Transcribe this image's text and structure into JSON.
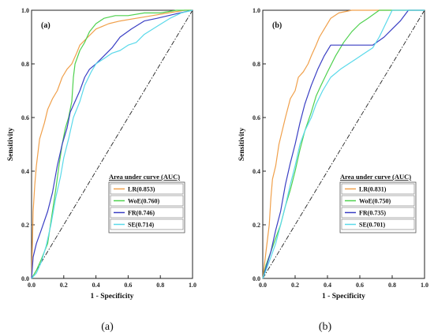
{
  "chart_data": [
    {
      "type": "line",
      "panel_label": "(a)",
      "caption": "(a)",
      "xlabel": "1 - Specificity",
      "ylabel": "Sensitivity",
      "xlim": [
        0,
        1
      ],
      "ylim": [
        0,
        1
      ],
      "xticks": [
        "0.0",
        "0.2",
        "0.4",
        "0.6",
        "0.8",
        "1.0"
      ],
      "yticks": [
        "0.0",
        "0.2",
        "0.4",
        "0.6",
        "0.8",
        "1.0"
      ],
      "grid": false,
      "legend_title": "Area under curve (AUC)",
      "legend_position": "bottom-right",
      "diagonal": true,
      "series": [
        {
          "name": "LR(0.853)",
          "color": "#f0a04b",
          "points": [
            [
              0,
              0
            ],
            [
              0.005,
              0.12
            ],
            [
              0.01,
              0.25
            ],
            [
              0.02,
              0.35
            ],
            [
              0.03,
              0.42
            ],
            [
              0.05,
              0.52
            ],
            [
              0.08,
              0.58
            ],
            [
              0.1,
              0.63
            ],
            [
              0.13,
              0.67
            ],
            [
              0.16,
              0.7
            ],
            [
              0.19,
              0.75
            ],
            [
              0.22,
              0.78
            ],
            [
              0.25,
              0.8
            ],
            [
              0.28,
              0.84
            ],
            [
              0.3,
              0.87
            ],
            [
              0.35,
              0.9
            ],
            [
              0.4,
              0.93
            ],
            [
              0.48,
              0.95
            ],
            [
              0.55,
              0.96
            ],
            [
              0.65,
              0.97
            ],
            [
              0.75,
              0.98
            ],
            [
              0.85,
              0.99
            ],
            [
              0.95,
              1.0
            ],
            [
              1,
              1
            ]
          ]
        },
        {
          "name": "WoE(0.760)",
          "color": "#4fd14f",
          "points": [
            [
              0,
              0
            ],
            [
              0.03,
              0.03
            ],
            [
              0.06,
              0.07
            ],
            [
              0.1,
              0.13
            ],
            [
              0.13,
              0.25
            ],
            [
              0.15,
              0.33
            ],
            [
              0.17,
              0.42
            ],
            [
              0.19,
              0.5
            ],
            [
              0.21,
              0.56
            ],
            [
              0.23,
              0.6
            ],
            [
              0.25,
              0.66
            ],
            [
              0.26,
              0.75
            ],
            [
              0.27,
              0.8
            ],
            [
              0.3,
              0.85
            ],
            [
              0.33,
              0.88
            ],
            [
              0.36,
              0.92
            ],
            [
              0.4,
              0.95
            ],
            [
              0.45,
              0.97
            ],
            [
              0.52,
              0.98
            ],
            [
              0.6,
              0.98
            ],
            [
              0.7,
              0.99
            ],
            [
              0.8,
              0.99
            ],
            [
              0.9,
              1.0
            ],
            [
              1,
              1
            ]
          ]
        },
        {
          "name": "FR(0.746)",
          "color": "#3a3fc4",
          "points": [
            [
              0,
              0
            ],
            [
              0.01,
              0.08
            ],
            [
              0.03,
              0.13
            ],
            [
              0.06,
              0.18
            ],
            [
              0.1,
              0.25
            ],
            [
              0.13,
              0.32
            ],
            [
              0.16,
              0.42
            ],
            [
              0.19,
              0.5
            ],
            [
              0.22,
              0.56
            ],
            [
              0.24,
              0.62
            ],
            [
              0.27,
              0.66
            ],
            [
              0.3,
              0.7
            ],
            [
              0.33,
              0.75
            ],
            [
              0.36,
              0.78
            ],
            [
              0.4,
              0.8
            ],
            [
              0.45,
              0.83
            ],
            [
              0.5,
              0.86
            ],
            [
              0.55,
              0.9
            ],
            [
              0.62,
              0.93
            ],
            [
              0.7,
              0.96
            ],
            [
              0.78,
              0.97
            ],
            [
              0.85,
              0.98
            ],
            [
              0.92,
              0.99
            ],
            [
              1,
              1
            ]
          ]
        },
        {
          "name": "SE(0.714)",
          "color": "#5ad9ea",
          "points": [
            [
              0,
              0
            ],
            [
              0.03,
              0.02
            ],
            [
              0.06,
              0.06
            ],
            [
              0.09,
              0.12
            ],
            [
              0.12,
              0.2
            ],
            [
              0.15,
              0.3
            ],
            [
              0.18,
              0.38
            ],
            [
              0.2,
              0.45
            ],
            [
              0.23,
              0.52
            ],
            [
              0.26,
              0.6
            ],
            [
              0.3,
              0.66
            ],
            [
              0.33,
              0.72
            ],
            [
              0.37,
              0.77
            ],
            [
              0.4,
              0.8
            ],
            [
              0.45,
              0.82
            ],
            [
              0.5,
              0.84
            ],
            [
              0.55,
              0.85
            ],
            [
              0.6,
              0.87
            ],
            [
              0.65,
              0.88
            ],
            [
              0.7,
              0.91
            ],
            [
              0.78,
              0.94
            ],
            [
              0.86,
              0.97
            ],
            [
              0.93,
              0.99
            ],
            [
              1,
              1
            ]
          ]
        }
      ]
    },
    {
      "type": "line",
      "panel_label": "(b)",
      "caption": "(b)",
      "xlabel": "1 - Specificity",
      "ylabel": "Sensitivity",
      "xlim": [
        0,
        1
      ],
      "ylim": [
        0,
        1
      ],
      "xticks": [
        "0.0",
        "0.2",
        "0.4",
        "0.6",
        "0.8",
        "1.0"
      ],
      "yticks": [
        "0.0",
        "0.2",
        "0.4",
        "0.6",
        "0.8",
        "1.0"
      ],
      "grid": false,
      "legend_title": "Area under curve (AUC)",
      "legend_position": "bottom-right",
      "diagonal": true,
      "series": [
        {
          "name": "LR(0.831)",
          "color": "#f0a04b",
          "points": [
            [
              0,
              0
            ],
            [
              0.02,
              0.1
            ],
            [
              0.04,
              0.2
            ],
            [
              0.05,
              0.3
            ],
            [
              0.06,
              0.37
            ],
            [
              0.08,
              0.42
            ],
            [
              0.1,
              0.5
            ],
            [
              0.12,
              0.55
            ],
            [
              0.14,
              0.6
            ],
            [
              0.17,
              0.67
            ],
            [
              0.2,
              0.7
            ],
            [
              0.22,
              0.75
            ],
            [
              0.25,
              0.77
            ],
            [
              0.28,
              0.8
            ],
            [
              0.3,
              0.83
            ],
            [
              0.33,
              0.87
            ],
            [
              0.35,
              0.9
            ],
            [
              0.38,
              0.93
            ],
            [
              0.42,
              0.97
            ],
            [
              0.47,
              0.99
            ],
            [
              0.55,
              1.0
            ],
            [
              1,
              1
            ]
          ]
        },
        {
          "name": "WoE(0.750)",
          "color": "#4fd14f",
          "points": [
            [
              0,
              0
            ],
            [
              0.02,
              0.05
            ],
            [
              0.05,
              0.1
            ],
            [
              0.08,
              0.15
            ],
            [
              0.11,
              0.2
            ],
            [
              0.14,
              0.27
            ],
            [
              0.17,
              0.33
            ],
            [
              0.2,
              0.4
            ],
            [
              0.23,
              0.48
            ],
            [
              0.26,
              0.55
            ],
            [
              0.3,
              0.62
            ],
            [
              0.33,
              0.68
            ],
            [
              0.36,
              0.72
            ],
            [
              0.4,
              0.77
            ],
            [
              0.45,
              0.83
            ],
            [
              0.5,
              0.88
            ],
            [
              0.55,
              0.92
            ],
            [
              0.6,
              0.95
            ],
            [
              0.65,
              0.97
            ],
            [
              0.72,
              1.0
            ],
            [
              1,
              1
            ]
          ]
        },
        {
          "name": "FR(0.735)",
          "color": "#3a3fc4",
          "points": [
            [
              0,
              0
            ],
            [
              0.02,
              0.04
            ],
            [
              0.05,
              0.1
            ],
            [
              0.08,
              0.18
            ],
            [
              0.11,
              0.25
            ],
            [
              0.14,
              0.35
            ],
            [
              0.17,
              0.43
            ],
            [
              0.2,
              0.5
            ],
            [
              0.23,
              0.58
            ],
            [
              0.26,
              0.65
            ],
            [
              0.3,
              0.72
            ],
            [
              0.34,
              0.78
            ],
            [
              0.38,
              0.83
            ],
            [
              0.42,
              0.87
            ],
            [
              0.48,
              0.87
            ],
            [
              0.55,
              0.87
            ],
            [
              0.62,
              0.87
            ],
            [
              0.68,
              0.87
            ],
            [
              0.75,
              0.9
            ],
            [
              0.8,
              0.93
            ],
            [
              0.85,
              0.96
            ],
            [
              0.9,
              1.0
            ],
            [
              1,
              1
            ]
          ]
        },
        {
          "name": "SE(0.701)",
          "color": "#5ad9ea",
          "points": [
            [
              0,
              0
            ],
            [
              0.02,
              0.03
            ],
            [
              0.05,
              0.08
            ],
            [
              0.08,
              0.13
            ],
            [
              0.11,
              0.2
            ],
            [
              0.14,
              0.27
            ],
            [
              0.17,
              0.35
            ],
            [
              0.2,
              0.42
            ],
            [
              0.23,
              0.5
            ],
            [
              0.26,
              0.55
            ],
            [
              0.3,
              0.6
            ],
            [
              0.33,
              0.65
            ],
            [
              0.37,
              0.7
            ],
            [
              0.42,
              0.75
            ],
            [
              0.48,
              0.78
            ],
            [
              0.53,
              0.8
            ],
            [
              0.58,
              0.82
            ],
            [
              0.63,
              0.84
            ],
            [
              0.68,
              0.86
            ],
            [
              0.72,
              0.9
            ],
            [
              0.76,
              0.95
            ],
            [
              0.8,
              1.0
            ],
            [
              1,
              1
            ]
          ]
        }
      ]
    }
  ]
}
